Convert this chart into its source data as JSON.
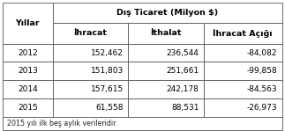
{
  "title": "Dış Ticaret (Milyon $)",
  "col_headers": [
    "Yıllar",
    "İhracat",
    "İthalat",
    "İhracat Açığı"
  ],
  "rows": [
    [
      "2012",
      "152,462",
      "236,544",
      "-84,082"
    ],
    [
      "2013",
      "151,803",
      "251,661",
      "-99,858"
    ],
    [
      "2014",
      "157,615",
      "242,178",
      "-84,563"
    ],
    [
      "2015",
      "61,558",
      "88,531",
      "-26,973"
    ]
  ],
  "footnote": "2015 yılı ilk beş aylık verileridir.",
  "bg_color": "#ffffff",
  "border_color": "#555555",
  "text_color": "#000000",
  "font_size": 6.5,
  "header_font_size": 6.8,
  "figsize": [
    3.23,
    1.49
  ],
  "dpi": 100
}
